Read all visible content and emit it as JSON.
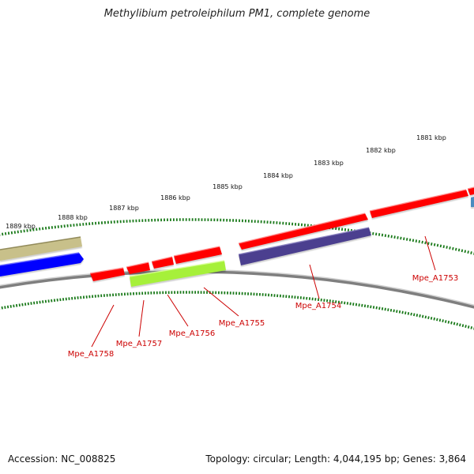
{
  "title": "Methylibium petroleiphilum PM1, complete genome",
  "footer": {
    "accession": "Accession: NC_008825",
    "summary": "Topology: circular; Length: 4,044,195 bp; Genes: 3,864"
  },
  "colors": {
    "backbone": "#7f7f7f",
    "tick": "#1a7a1a",
    "label": "#cc0000",
    "cds": "#ff0000",
    "gene_olive": "#c8c08a",
    "gene_blue": "#0000ff",
    "gene_indigo": "#4b3f8f",
    "gene_lime": "#a6f03a",
    "gene_steel": "#4a8cc0"
  },
  "scale_labels": [
    "1881 kbp",
    "1882 kbp",
    "1883 kbp",
    "1884 kbp",
    "1885 kbp",
    "1886 kbp",
    "1887 kbp",
    "1888 kbp",
    "1889 kbp"
  ],
  "genes": [
    {
      "id": "Mpe_A1753",
      "label": "Mpe_A1753"
    },
    {
      "id": "Mpe_A1754",
      "label": "Mpe_A1754"
    },
    {
      "id": "Mpe_A1755",
      "label": "Mpe_A1755"
    },
    {
      "id": "Mpe_A1756",
      "label": "Mpe_A1756"
    },
    {
      "id": "Mpe_A1757",
      "label": "Mpe_A1757"
    },
    {
      "id": "Mpe_A1758",
      "label": "Mpe_A1758"
    }
  ]
}
